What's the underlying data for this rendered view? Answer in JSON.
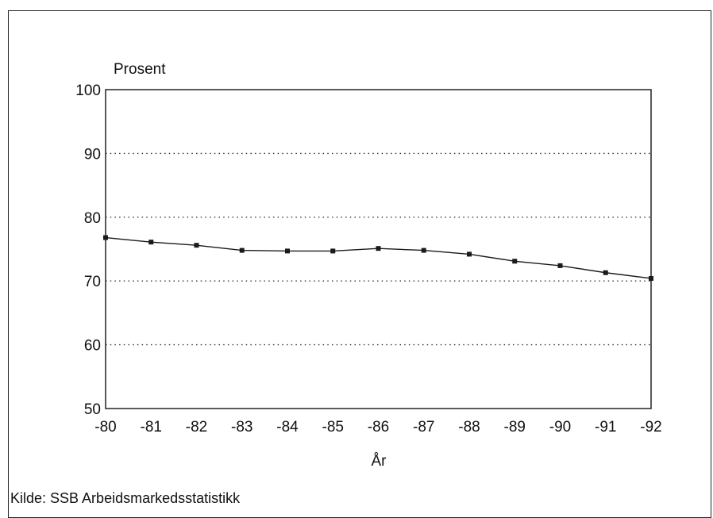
{
  "chart_data": {
    "type": "line",
    "title": "",
    "ylabel": "Prosent",
    "xlabel": "År",
    "categories": [
      "-80",
      "-81",
      "-82",
      "-83",
      "-84",
      "-85",
      "-86",
      "-87",
      "-88",
      "-89",
      "-90",
      "-91",
      "-92"
    ],
    "series": [
      {
        "values": [
          76.8,
          76.1,
          75.6,
          74.8,
          74.7,
          74.7,
          75.1,
          74.8,
          74.2,
          73.1,
          72.4,
          71.3,
          70.4
        ]
      }
    ],
    "ylim": [
      50,
      100
    ],
    "yticks": [
      "100",
      "90",
      "80",
      "70",
      "60",
      "50"
    ],
    "grid": "dotted horizontal",
    "legend": "none",
    "line_color": "#1a1a1a",
    "marker": "square"
  },
  "source": "Kilde: SSB Arbeidsmarkedsstatistikk"
}
